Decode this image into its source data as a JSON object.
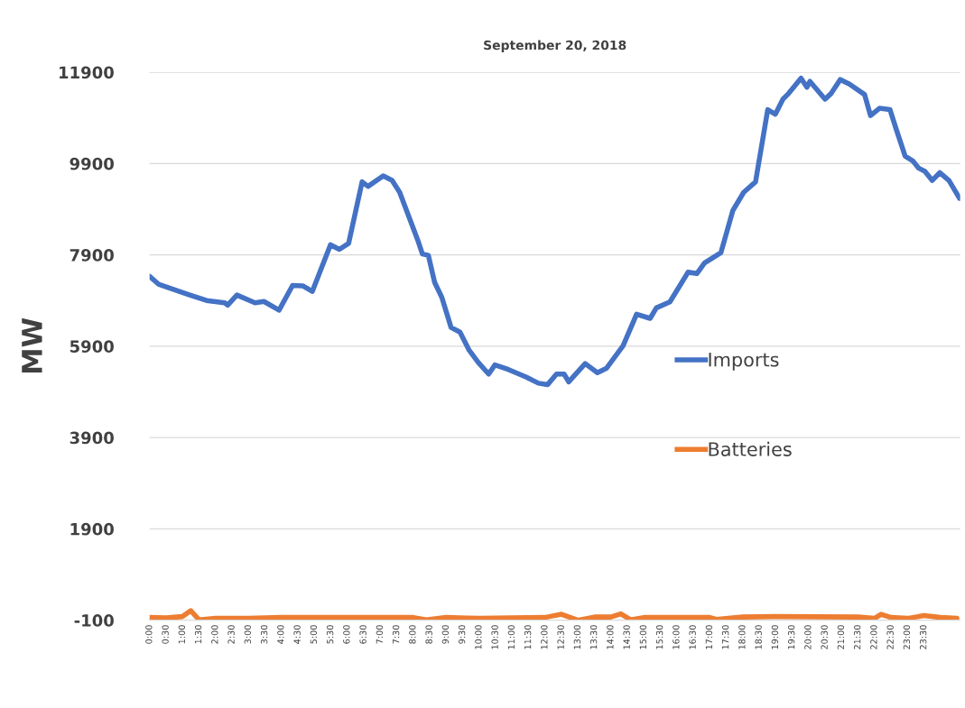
{
  "chart_data": {
    "type": "line",
    "title": "September 20, 2018",
    "ylabel": "MW",
    "xlim": [
      0,
      24.6
    ],
    "ylim": [
      -100,
      11900
    ],
    "yticks": [
      -100,
      1900,
      3900,
      5900,
      7900,
      9900,
      11900
    ],
    "xticks": [
      {
        "value": 0,
        "label": "0:00"
      },
      {
        "value": 0.5,
        "label": "0:30"
      },
      {
        "value": 1,
        "label": "1:00"
      },
      {
        "value": 1.5,
        "label": "1:30"
      },
      {
        "value": 2,
        "label": "2:00"
      },
      {
        "value": 2.5,
        "label": "2:30"
      },
      {
        "value": 3,
        "label": "3:00"
      },
      {
        "value": 3.5,
        "label": "3:30"
      },
      {
        "value": 4,
        "label": "4:00"
      },
      {
        "value": 4.5,
        "label": "4:30"
      },
      {
        "value": 5,
        "label": "5:00"
      },
      {
        "value": 5.5,
        "label": "5:30"
      },
      {
        "value": 6,
        "label": "6:00"
      },
      {
        "value": 6.5,
        "label": "6:30"
      },
      {
        "value": 7,
        "label": "7:00"
      },
      {
        "value": 7.5,
        "label": "7:30"
      },
      {
        "value": 8,
        "label": "8:00"
      },
      {
        "value": 8.5,
        "label": "8:30"
      },
      {
        "value": 9,
        "label": "9:00"
      },
      {
        "value": 9.5,
        "label": "9:30"
      },
      {
        "value": 10,
        "label": "10:00"
      },
      {
        "value": 10.5,
        "label": "10:30"
      },
      {
        "value": 11,
        "label": "11:00"
      },
      {
        "value": 11.5,
        "label": "11:30"
      },
      {
        "value": 12,
        "label": "12:00"
      },
      {
        "value": 12.5,
        "label": "12:30"
      },
      {
        "value": 13,
        "label": "13:00"
      },
      {
        "value": 13.5,
        "label": "13:30"
      },
      {
        "value": 14,
        "label": "14:00"
      },
      {
        "value": 14.5,
        "label": "14:30"
      },
      {
        "value": 15,
        "label": "15:00"
      },
      {
        "value": 15.5,
        "label": "15:30"
      },
      {
        "value": 16,
        "label": "16:00"
      },
      {
        "value": 16.5,
        "label": "16:30"
      },
      {
        "value": 17,
        "label": "17:00"
      },
      {
        "value": 17.5,
        "label": "17:30"
      },
      {
        "value": 18,
        "label": "18:00"
      },
      {
        "value": 18.5,
        "label": "18:30"
      },
      {
        "value": 19,
        "label": "19:00"
      },
      {
        "value": 19.5,
        "label": "19:30"
      },
      {
        "value": 20,
        "label": "20:00"
      },
      {
        "value": 20.5,
        "label": "20:30"
      },
      {
        "value": 21,
        "label": "21:00"
      },
      {
        "value": 21.5,
        "label": "21:30"
      },
      {
        "value": 22,
        "label": "22:00"
      },
      {
        "value": 22.5,
        "label": "22:30"
      },
      {
        "value": 23,
        "label": "23:00"
      },
      {
        "value": 23.5,
        "label": "23:30"
      }
    ],
    "grid": "y",
    "legend": "right",
    "marker": "none",
    "line_style": "solid",
    "series": [
      {
        "name": "Imports",
        "color": "#4472c4",
        "x": [
          0,
          0.27,
          1.18,
          1.73,
          2.28,
          2.37,
          2.65,
          3.2,
          3.47,
          3.93,
          4.34,
          4.66,
          4.94,
          5.49,
          5.76,
          6.04,
          6.45,
          6.63,
          7.09,
          7.36,
          7.59,
          8.14,
          8.28,
          8.46,
          8.65,
          8.87,
          9.15,
          9.42,
          9.7,
          9.97,
          10.29,
          10.48,
          10.89,
          11.44,
          11.8,
          12.08,
          12.35,
          12.58,
          12.72,
          13.22,
          13.59,
          13.87,
          14.37,
          14.78,
          15.19,
          15.38,
          15.79,
          16.34,
          16.61,
          16.84,
          17.34,
          17.7,
          18.03,
          18.39,
          18.76,
          18.99,
          19.22,
          19.4,
          19.77,
          19.95,
          20.04,
          20.5,
          20.69,
          20.96,
          21.24,
          21.7,
          21.88,
          22.15,
          22.47,
          22.66,
          22.93,
          23.16,
          23.34,
          23.53,
          23.75,
          23.98,
          24.26,
          24.58
        ],
        "values": [
          7430,
          7260,
          7030,
          6900,
          6850,
          6800,
          7020,
          6850,
          6880,
          6690,
          7230,
          7220,
          7100,
          8120,
          8020,
          8150,
          9500,
          9400,
          9630,
          9530,
          9270,
          8220,
          7920,
          7890,
          7300,
          6970,
          6310,
          6210,
          5810,
          5550,
          5290,
          5490,
          5390,
          5220,
          5090,
          5060,
          5290,
          5290,
          5120,
          5520,
          5320,
          5420,
          5910,
          6600,
          6510,
          6740,
          6870,
          7520,
          7490,
          7720,
          7950,
          8870,
          9270,
          9500,
          11080,
          10980,
          11310,
          11440,
          11770,
          11570,
          11700,
          11310,
          11440,
          11740,
          11640,
          11410,
          10950,
          11110,
          11080,
          10650,
          10060,
          9960,
          9800,
          9730,
          9530,
          9700,
          9530,
          9140
        ]
      },
      {
        "name": "Batteries",
        "color": "#ed7d31",
        "x": [
          0,
          0.5,
          1.0,
          1.25,
          1.5,
          2,
          3,
          4,
          5,
          8,
          8.4,
          9,
          10,
          12,
          12.5,
          13,
          13.5,
          14.0,
          14.3,
          14.6,
          15,
          17,
          17.2,
          18,
          19,
          21.5,
          22,
          22.2,
          22.5,
          23,
          23.5,
          24,
          24.5
        ],
        "values": [
          -40,
          -50,
          -20,
          110,
          -90,
          -60,
          -60,
          -40,
          -40,
          -40,
          -90,
          -40,
          -60,
          -40,
          30,
          -100,
          -30,
          -30,
          40,
          -90,
          -40,
          -40,
          -80,
          -30,
          -20,
          -30,
          -60,
          30,
          -40,
          -60,
          0,
          -40,
          -60
        ]
      }
    ]
  }
}
